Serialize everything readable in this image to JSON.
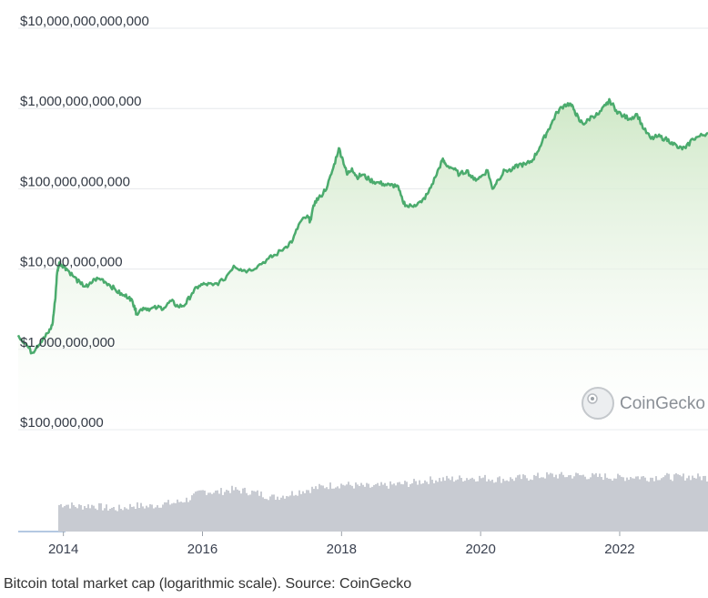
{
  "caption": "Bitcoin total market cap (logarithmic scale). Source: CoinGecko",
  "watermark": "CoinGecko",
  "colors": {
    "line": "#4bab6d",
    "area_top": "#cfe8c7",
    "area_bottom": "#ffffff",
    "volume": "#c8cbd2",
    "grid": "#e6e8ec"
  },
  "chart_data": {
    "type": "area",
    "y_scale": "log",
    "y_range": [
      100000000,
      10000000000000
    ],
    "y_ticks": [
      {
        "value": 10000000000000,
        "label": "$10,000,000,000,000"
      },
      {
        "value": 1000000000000,
        "label": "$1,000,000,000,000"
      },
      {
        "value": 100000000000,
        "label": "$100,000,000,000"
      },
      {
        "value": 10000000000,
        "label": "$10,000,000,000"
      },
      {
        "value": 1000000000,
        "label": "$1,000,000,000"
      },
      {
        "value": 100000000,
        "label": "$100,000,000"
      }
    ],
    "x_range": [
      2013.35,
      2023.27
    ],
    "x_ticks": [
      {
        "value": 2014,
        "label": "2014"
      },
      {
        "value": 2016,
        "label": "2016"
      },
      {
        "value": 2018,
        "label": "2018"
      },
      {
        "value": 2020,
        "label": "2020"
      },
      {
        "value": 2022,
        "label": "2022"
      }
    ],
    "series": [
      {
        "values": [
          [
            2013.35,
            1500000000
          ],
          [
            2013.45,
            1200000000
          ],
          [
            2013.55,
            900000000
          ],
          [
            2013.62,
            1100000000
          ],
          [
            2013.7,
            1300000000
          ],
          [
            2013.78,
            1600000000
          ],
          [
            2013.84,
            2000000000
          ],
          [
            2013.88,
            4000000000
          ],
          [
            2013.91,
            9000000000
          ],
          [
            2013.94,
            12000000000
          ],
          [
            2014.0,
            11000000000
          ],
          [
            2014.05,
            10000000000
          ],
          [
            2014.15,
            8000000000
          ],
          [
            2014.25,
            6500000000
          ],
          [
            2014.35,
            6000000000
          ],
          [
            2014.45,
            7500000000
          ],
          [
            2014.55,
            7500000000
          ],
          [
            2014.65,
            6500000000
          ],
          [
            2014.75,
            5500000000
          ],
          [
            2014.85,
            4700000000
          ],
          [
            2014.95,
            4500000000
          ],
          [
            2015.02,
            3500000000
          ],
          [
            2015.05,
            2800000000
          ],
          [
            2015.15,
            3300000000
          ],
          [
            2015.25,
            3200000000
          ],
          [
            2015.35,
            3300000000
          ],
          [
            2015.45,
            3300000000
          ],
          [
            2015.55,
            4000000000
          ],
          [
            2015.65,
            3400000000
          ],
          [
            2015.75,
            3600000000
          ],
          [
            2015.85,
            5000000000
          ],
          [
            2015.95,
            6200000000
          ],
          [
            2016.05,
            6500000000
          ],
          [
            2016.15,
            6300000000
          ],
          [
            2016.3,
            7200000000
          ],
          [
            2016.45,
            11000000000
          ],
          [
            2016.55,
            10000000000
          ],
          [
            2016.65,
            9500000000
          ],
          [
            2016.8,
            11000000000
          ],
          [
            2016.95,
            13500000000
          ],
          [
            2017.05,
            15000000000
          ],
          [
            2017.2,
            19000000000
          ],
          [
            2017.3,
            23000000000
          ],
          [
            2017.4,
            38000000000
          ],
          [
            2017.5,
            45000000000
          ],
          [
            2017.55,
            40000000000
          ],
          [
            2017.62,
            70000000000
          ],
          [
            2017.7,
            80000000000
          ],
          [
            2017.8,
            110000000000
          ],
          [
            2017.88,
            180000000000
          ],
          [
            2017.96,
            320000000000
          ],
          [
            2018.02,
            230000000000
          ],
          [
            2018.08,
            150000000000
          ],
          [
            2018.15,
            180000000000
          ],
          [
            2018.22,
            140000000000
          ],
          [
            2018.3,
            150000000000
          ],
          [
            2018.4,
            130000000000
          ],
          [
            2018.5,
            120000000000
          ],
          [
            2018.6,
            115000000000
          ],
          [
            2018.7,
            110000000000
          ],
          [
            2018.8,
            110000000000
          ],
          [
            2018.88,
            70000000000
          ],
          [
            2018.95,
            60000000000
          ],
          [
            2019.05,
            63000000000
          ],
          [
            2019.15,
            68000000000
          ],
          [
            2019.25,
            90000000000
          ],
          [
            2019.35,
            140000000000
          ],
          [
            2019.45,
            230000000000
          ],
          [
            2019.5,
            200000000000
          ],
          [
            2019.6,
            180000000000
          ],
          [
            2019.7,
            150000000000
          ],
          [
            2019.8,
            170000000000
          ],
          [
            2019.9,
            130000000000
          ],
          [
            2020.0,
            140000000000
          ],
          [
            2020.1,
            170000000000
          ],
          [
            2020.17,
            100000000000
          ],
          [
            2020.25,
            130000000000
          ],
          [
            2020.35,
            170000000000
          ],
          [
            2020.45,
            170000000000
          ],
          [
            2020.55,
            200000000000
          ],
          [
            2020.65,
            200000000000
          ],
          [
            2020.75,
            230000000000
          ],
          [
            2020.85,
            330000000000
          ],
          [
            2020.95,
            500000000000
          ],
          [
            2021.02,
            650000000000
          ],
          [
            2021.1,
            900000000000
          ],
          [
            2021.2,
            1100000000000
          ],
          [
            2021.28,
            1150000000000
          ],
          [
            2021.35,
            950000000000
          ],
          [
            2021.42,
            700000000000
          ],
          [
            2021.5,
            650000000000
          ],
          [
            2021.6,
            800000000000
          ],
          [
            2021.7,
            850000000000
          ],
          [
            2021.8,
            1100000000000
          ],
          [
            2021.86,
            1250000000000
          ],
          [
            2021.95,
            950000000000
          ],
          [
            2022.05,
            800000000000
          ],
          [
            2022.15,
            750000000000
          ],
          [
            2022.25,
            850000000000
          ],
          [
            2022.35,
            550000000000
          ],
          [
            2022.45,
            420000000000
          ],
          [
            2022.55,
            450000000000
          ],
          [
            2022.65,
            420000000000
          ],
          [
            2022.75,
            380000000000
          ],
          [
            2022.85,
            320000000000
          ],
          [
            2022.95,
            320000000000
          ],
          [
            2023.05,
            420000000000
          ],
          [
            2023.15,
            450000000000
          ],
          [
            2023.27,
            500000000000
          ]
        ]
      }
    ],
    "volume_series": {
      "values": [
        [
          2013.9,
          0.4
        ],
        [
          2014.0,
          0.42
        ],
        [
          2014.2,
          0.38
        ],
        [
          2014.4,
          0.4
        ],
        [
          2014.6,
          0.36
        ],
        [
          2014.8,
          0.35
        ],
        [
          2015.0,
          0.4
        ],
        [
          2015.2,
          0.38
        ],
        [
          2015.4,
          0.42
        ],
        [
          2015.6,
          0.44
        ],
        [
          2015.8,
          0.5
        ],
        [
          2016.0,
          0.62
        ],
        [
          2016.2,
          0.6
        ],
        [
          2016.4,
          0.64
        ],
        [
          2016.6,
          0.62
        ],
        [
          2016.8,
          0.58
        ],
        [
          2017.0,
          0.52
        ],
        [
          2017.2,
          0.56
        ],
        [
          2017.4,
          0.62
        ],
        [
          2017.6,
          0.66
        ],
        [
          2017.8,
          0.7
        ],
        [
          2018.0,
          0.72
        ],
        [
          2018.2,
          0.7
        ],
        [
          2018.4,
          0.68
        ],
        [
          2018.6,
          0.7
        ],
        [
          2018.8,
          0.72
        ],
        [
          2019.0,
          0.74
        ],
        [
          2019.2,
          0.78
        ],
        [
          2019.4,
          0.8
        ],
        [
          2019.6,
          0.8
        ],
        [
          2019.8,
          0.82
        ],
        [
          2020.0,
          0.82
        ],
        [
          2020.2,
          0.8
        ],
        [
          2020.4,
          0.8
        ],
        [
          2020.6,
          0.82
        ],
        [
          2020.8,
          0.84
        ],
        [
          2021.0,
          0.86
        ],
        [
          2021.2,
          0.85
        ],
        [
          2021.4,
          0.86
        ],
        [
          2021.6,
          0.84
        ],
        [
          2021.8,
          0.84
        ],
        [
          2022.0,
          0.82
        ],
        [
          2022.2,
          0.84
        ],
        [
          2022.4,
          0.82
        ],
        [
          2022.6,
          0.84
        ],
        [
          2022.8,
          0.83
        ],
        [
          2023.0,
          0.84
        ],
        [
          2023.27,
          0.82
        ]
      ]
    }
  }
}
